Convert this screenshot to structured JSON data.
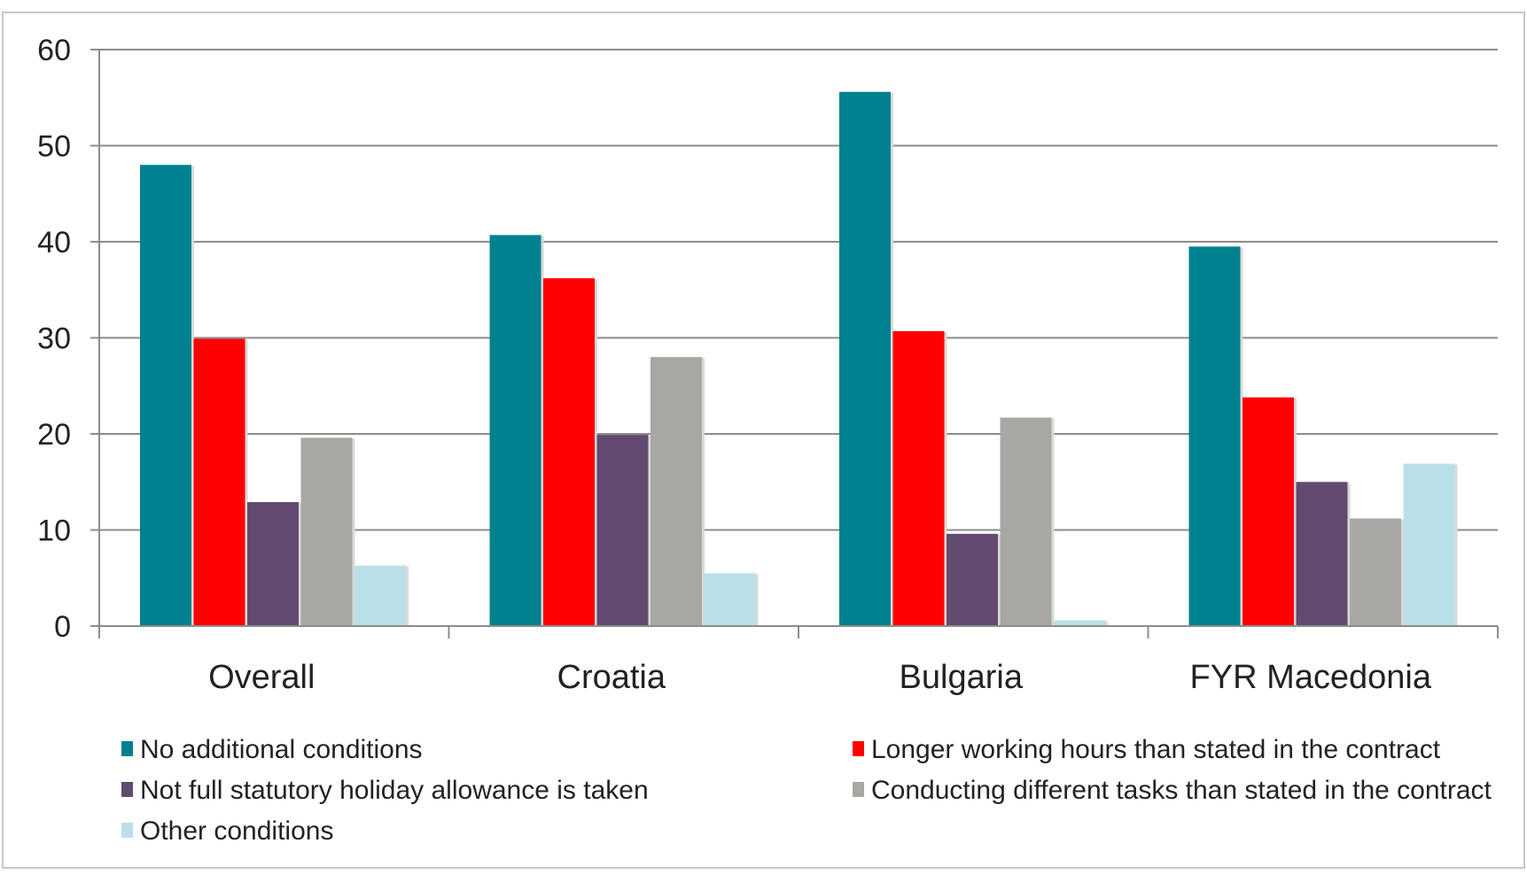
{
  "chart_data": {
    "type": "bar",
    "categories": [
      "Overall",
      "Croatia",
      "Bulgaria",
      "FYR Macedonia"
    ],
    "series": [
      {
        "name": "No additional conditions",
        "color": "#00818f",
        "values": [
          48,
          40.7,
          55.6,
          39.5
        ]
      },
      {
        "name": "Longer working hours than stated in the contract",
        "color": "#ff0000",
        "values": [
          29.9,
          36.2,
          30.7,
          23.8
        ]
      },
      {
        "name": "Not full statutory holiday allowance is taken",
        "color": "#634a70",
        "values": [
          12.9,
          19.9,
          9.6,
          15
        ]
      },
      {
        "name": "Conducting different tasks than stated in the contract",
        "color": "#a9a7a3",
        "values": [
          19.6,
          28,
          21.7,
          11.2
        ]
      },
      {
        "name": "Other conditions",
        "color": "#b9e0e8",
        "values": [
          6.3,
          5.5,
          0.6,
          16.9
        ]
      }
    ],
    "ylim": [
      0,
      60
    ],
    "yticks": [
      "0",
      "10",
      "20",
      "30",
      "40",
      "50",
      "60"
    ],
    "grid": true,
    "legend_position": "bottom",
    "title": "",
    "xlabel": "",
    "ylabel": ""
  }
}
